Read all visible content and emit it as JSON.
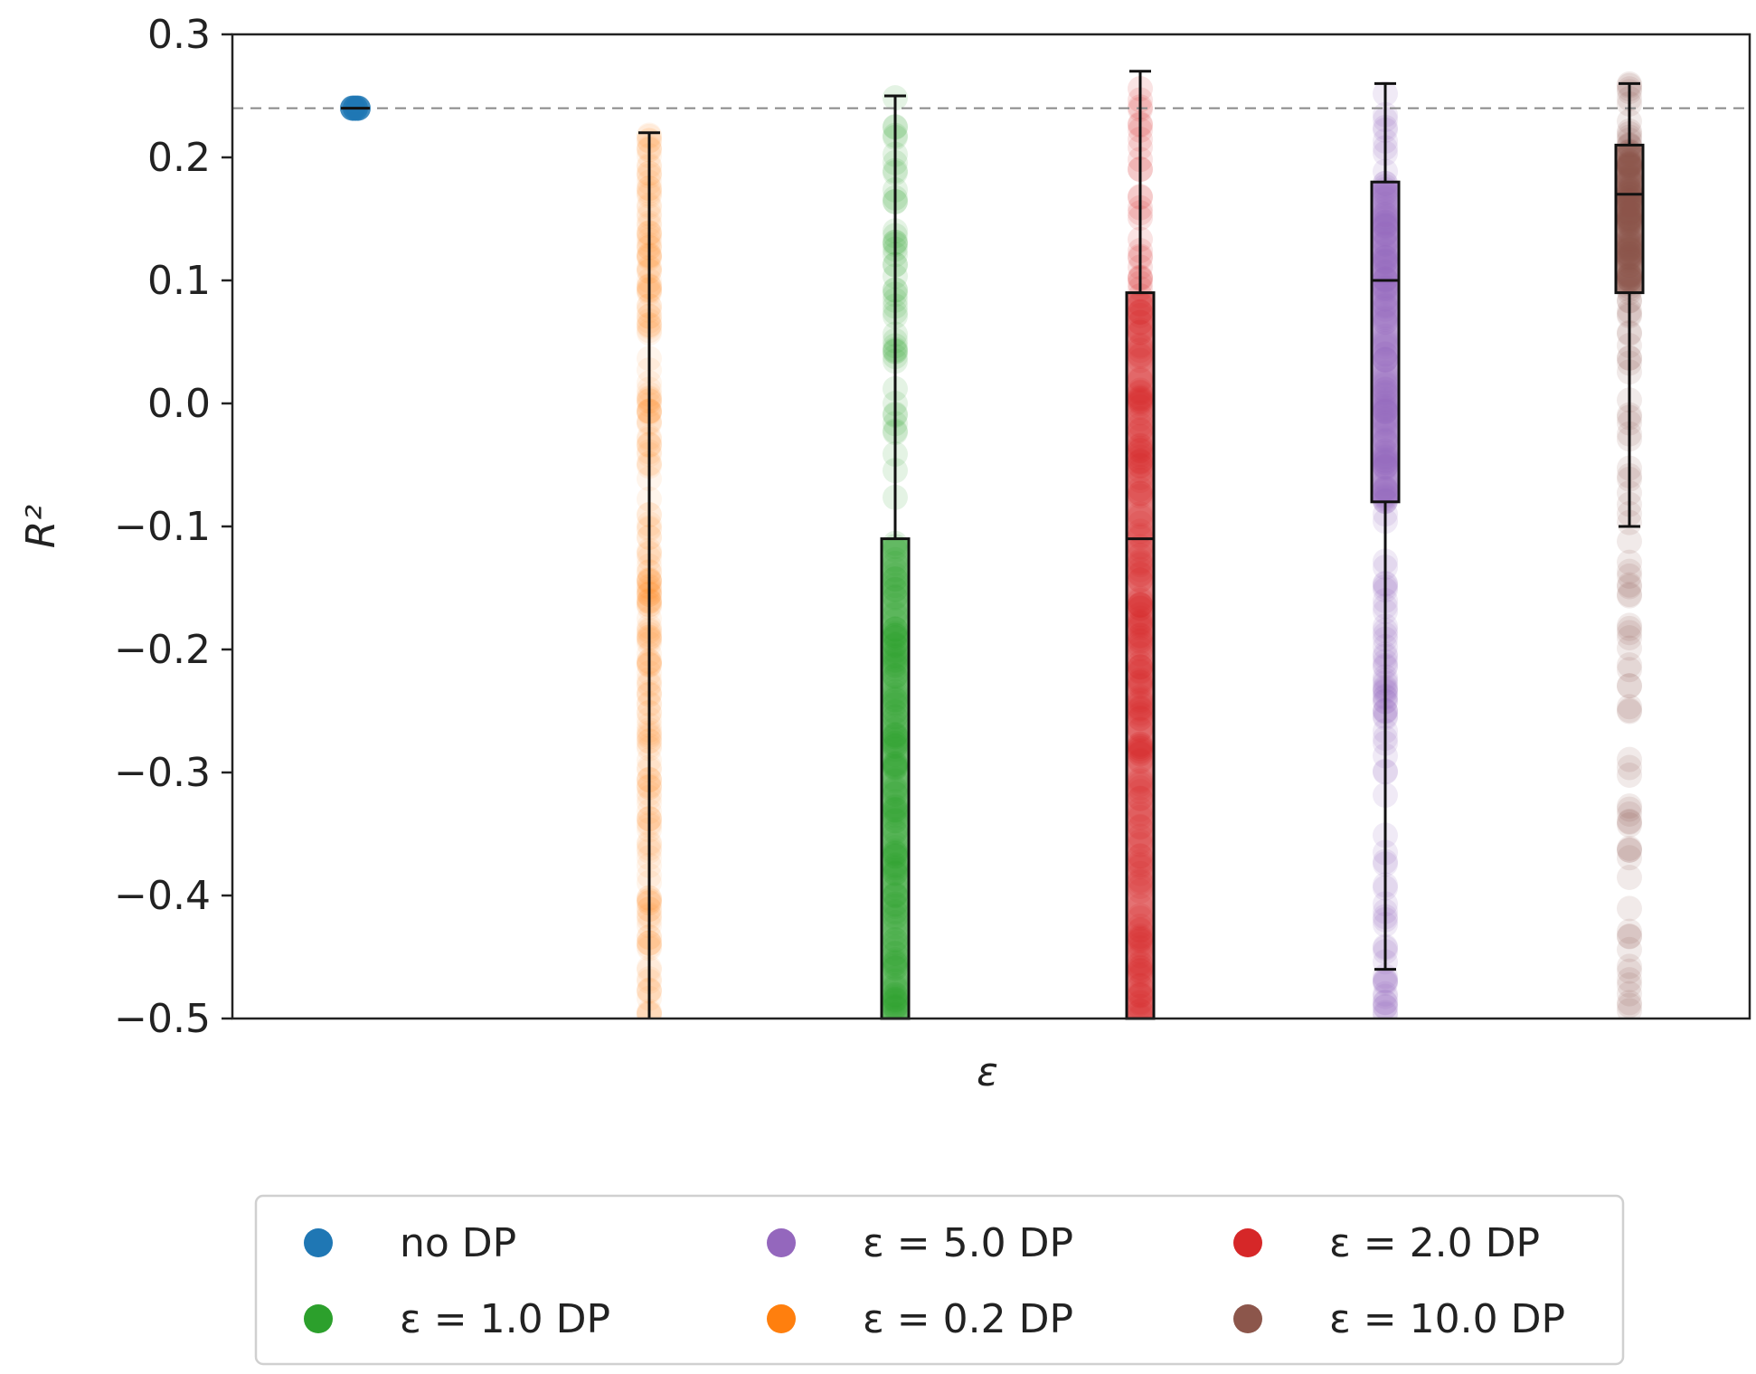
{
  "chart_data": {
    "type": "scatter",
    "xlabel": "ε",
    "ylabel": "R²",
    "ylim": [
      -0.5,
      0.3
    ],
    "yticks": [
      "0.3",
      "0.2",
      "0.1",
      "0.0",
      "−0.1",
      "−0.2",
      "−0.3",
      "−0.4",
      "−0.5"
    ],
    "ytick_values": [
      0.3,
      0.2,
      0.1,
      0.0,
      -0.1,
      -0.2,
      -0.3,
      -0.4,
      -0.5
    ],
    "reference_line": 0.24,
    "grid": false,
    "legend_placement": "below",
    "series": [
      {
        "name": "no DP",
        "color": "#1f77b4",
        "point_range": [
          0.24,
          0.24
        ],
        "box": {
          "whisker_low": 0.24,
          "q1": 0.24,
          "median": 0.24,
          "q3": 0.24,
          "whisker_high": 0.24
        }
      },
      {
        "name": "ε = 0.2 DP",
        "color": "#ff7f0e",
        "point_range": [
          -0.5,
          0.22
        ],
        "box": {
          "whisker_low": -0.5,
          "q1": -0.5,
          "median": -0.5,
          "q3": -0.5,
          "whisker_high": 0.22
        }
      },
      {
        "name": "ε = 1.0 DP",
        "color": "#2ca02c",
        "point_range": [
          -0.5,
          0.25
        ],
        "box": {
          "whisker_low": -0.5,
          "q1": -0.5,
          "median": -0.5,
          "q3": -0.11,
          "whisker_high": 0.25
        }
      },
      {
        "name": "ε = 2.0 DP",
        "color": "#d62728",
        "point_range": [
          -0.5,
          0.27
        ],
        "box": {
          "whisker_low": -0.5,
          "q1": -0.5,
          "median": -0.11,
          "q3": 0.09,
          "whisker_high": 0.27
        }
      },
      {
        "name": "ε = 5.0 DP",
        "color": "#9467bd",
        "point_range": [
          -0.5,
          0.26
        ],
        "box": {
          "whisker_low": -0.46,
          "q1": -0.08,
          "median": 0.1,
          "q3": 0.18,
          "whisker_high": 0.26
        }
      },
      {
        "name": "ε = 10.0 DP",
        "color": "#8c564b",
        "point_range": [
          -0.5,
          0.26
        ],
        "box": {
          "whisker_low": -0.1,
          "q1": 0.09,
          "median": 0.17,
          "q3": 0.21,
          "whisker_high": 0.26
        }
      }
    ],
    "legend_order": [
      0,
      2,
      4,
      1,
      3,
      5
    ]
  }
}
